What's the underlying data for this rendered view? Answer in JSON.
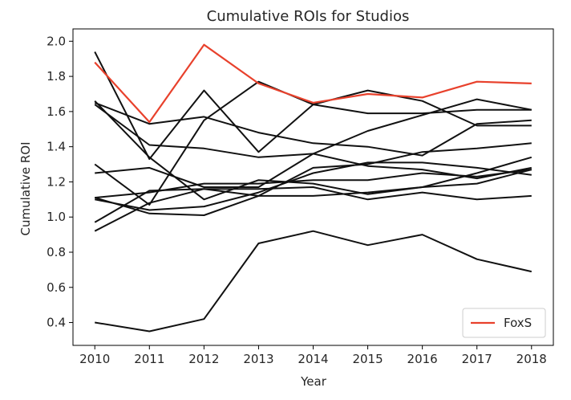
{
  "chart_data": {
    "type": "line",
    "title": "Cumulative ROIs for Studios",
    "xlabel": "Year",
    "ylabel": "Cumulative ROI",
    "x": [
      2010,
      2011,
      2012,
      2013,
      2014,
      2015,
      2016,
      2017,
      2018
    ],
    "xticks": [
      "2010",
      "2011",
      "2012",
      "2013",
      "2014",
      "2015",
      "2016",
      "2017",
      "2018"
    ],
    "yticks": [
      "0.4",
      "0.6",
      "0.8",
      "1.0",
      "1.2",
      "1.4",
      "1.6",
      "1.8",
      "2.0"
    ],
    "xlim": [
      2009.6,
      2018.4
    ],
    "ylim": [
      0.27,
      2.07
    ],
    "grid": false,
    "legend_position": "lower-right",
    "colors": {
      "highlight": "#e8412c",
      "other": "#111111"
    },
    "series": [
      {
        "name": "FoxS",
        "highlight": true,
        "values": [
          1.88,
          1.54,
          1.98,
          1.76,
          1.65,
          1.7,
          1.68,
          1.77,
          1.76
        ]
      },
      {
        "highlight": false,
        "values": [
          1.94,
          1.33,
          1.72,
          1.37,
          1.64,
          1.59,
          1.59,
          1.61,
          1.61
        ]
      },
      {
        "highlight": false,
        "values": [
          1.65,
          1.53,
          1.57,
          1.48,
          1.42,
          1.4,
          1.35,
          1.53,
          1.55
        ]
      },
      {
        "highlight": false,
        "values": [
          1.64,
          1.41,
          1.39,
          1.34,
          1.36,
          1.29,
          1.27,
          1.22,
          1.28
        ]
      },
      {
        "highlight": false,
        "values": [
          1.66,
          1.34,
          1.1,
          1.21,
          1.19,
          1.13,
          1.17,
          1.25,
          1.34
        ]
      },
      {
        "highlight": false,
        "values": [
          1.3,
          1.07,
          1.55,
          1.77,
          1.64,
          1.72,
          1.66,
          1.52,
          1.52
        ]
      },
      {
        "highlight": false,
        "values": [
          1.25,
          1.28,
          1.17,
          1.17,
          1.36,
          1.49,
          1.58,
          1.67,
          1.61
        ]
      },
      {
        "highlight": false,
        "values": [
          1.11,
          1.02,
          1.01,
          1.12,
          1.28,
          1.3,
          1.37,
          1.39,
          1.42
        ]
      },
      {
        "highlight": false,
        "values": [
          1.1,
          1.04,
          1.06,
          1.14,
          1.25,
          1.31,
          1.31,
          1.28,
          1.24
        ]
      },
      {
        "highlight": false,
        "values": [
          1.11,
          1.14,
          1.19,
          1.19,
          1.21,
          1.21,
          1.25,
          1.23,
          1.27
        ]
      },
      {
        "highlight": false,
        "values": [
          0.97,
          1.15,
          1.16,
          1.12,
          1.12,
          1.14,
          1.17,
          1.19,
          1.27
        ]
      },
      {
        "highlight": false,
        "values": [
          0.92,
          1.08,
          1.16,
          1.16,
          1.17,
          1.1,
          1.14,
          1.1,
          1.12
        ]
      },
      {
        "highlight": false,
        "values": [
          0.4,
          0.35,
          0.42,
          0.85,
          0.92,
          0.84,
          0.9,
          0.76,
          0.69
        ]
      }
    ]
  }
}
